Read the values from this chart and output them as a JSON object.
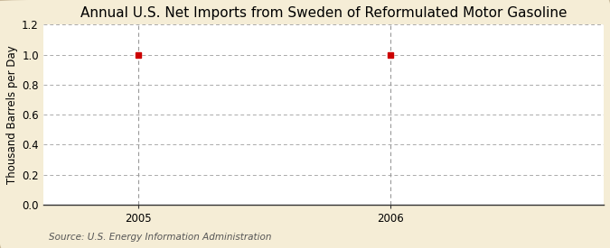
{
  "title": "Annual U.S. Net Imports from Sweden of Reformulated Motor Gasoline",
  "ylabel": "Thousand Barrels per Day",
  "source": "Source: U.S. Energy Information Administration",
  "x_data": [
    2005,
    2006
  ],
  "y_data": [
    1.0,
    1.0
  ],
  "xlim": [
    2004.62,
    2006.85
  ],
  "ylim": [
    0.0,
    1.2
  ],
  "yticks": [
    0.0,
    0.2,
    0.4,
    0.6,
    0.8,
    1.0,
    1.2
  ],
  "xticks": [
    2005,
    2006
  ],
  "marker_color": "#cc0000",
  "marker": "s",
  "marker_size": 4,
  "grid_color": "#aaaaaa",
  "vline_color": "#999999",
  "outer_bg": "#f5edd6",
  "plot_bg": "#ffffff",
  "title_fontsize": 11,
  "label_fontsize": 8.5,
  "tick_fontsize": 8.5,
  "source_fontsize": 7.5
}
